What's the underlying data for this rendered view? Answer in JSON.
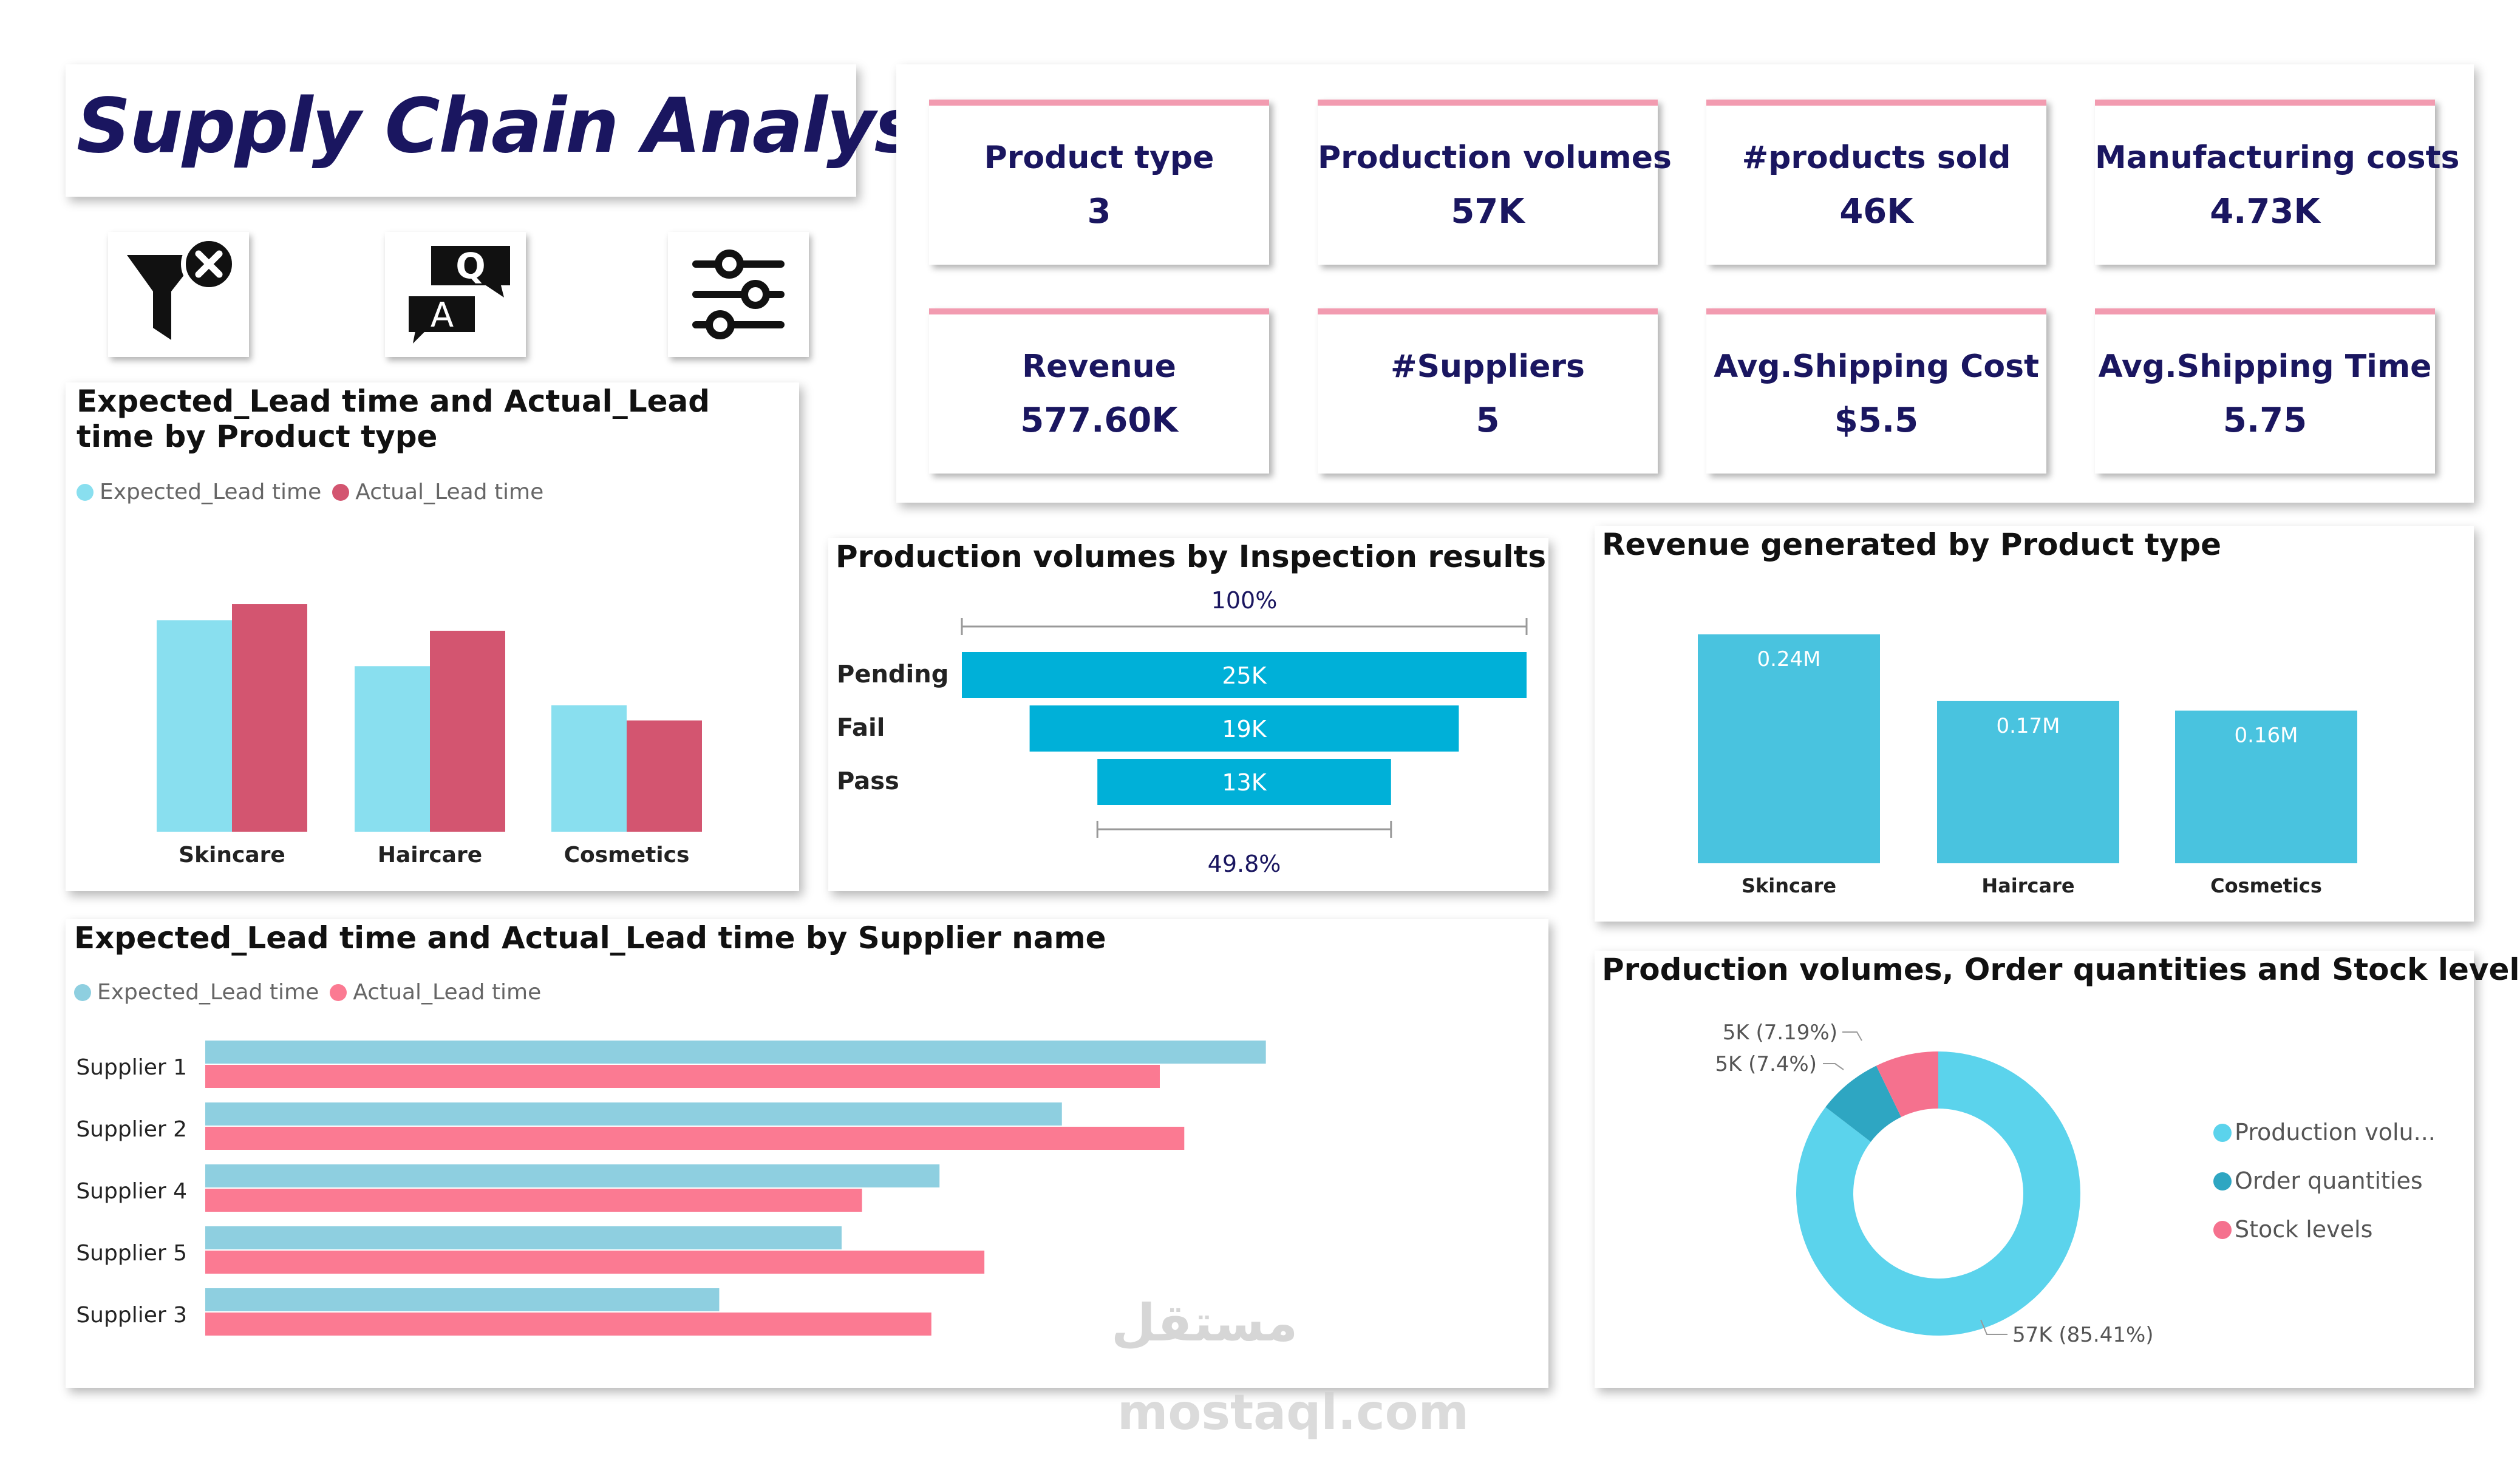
{
  "header": {
    "title": "Supply Chain Analysis"
  },
  "toolbar": {
    "icons": [
      "clear-filter-icon",
      "qa-icon",
      "slicer-settings-icon"
    ]
  },
  "kpis": [
    {
      "label": "Product type",
      "value": "3"
    },
    {
      "label": "Production volumes",
      "value": "57K"
    },
    {
      "label": "#products sold",
      "value": "46K"
    },
    {
      "label": "Manufacturing costs",
      "value": "4.73K"
    },
    {
      "label": "Revenue",
      "value": "577.60K"
    },
    {
      "label": "#Suppliers",
      "value": "5"
    },
    {
      "label": "Avg.Shipping Cost",
      "value": "$5.5"
    },
    {
      "label": "Avg.Shipping Time",
      "value": "5.75"
    }
  ],
  "colors": {
    "title": "#1a1660",
    "kpi_accent": "#f29bb0",
    "expected": "#89dfef",
    "actual": "#d35570",
    "expected_h": "#8ecfe0",
    "actual_h": "#fb7a92",
    "funnel": "#00b0d8",
    "revenue": "#49c3df",
    "donut_prod": "#5bd3ec",
    "donut_order": "#2ea6c2",
    "donut_stock": "#f5718e"
  },
  "chart_data": [
    {
      "id": "lead_by_product",
      "type": "bar",
      "title": "Expected_Lead time and Actual_Lead time by Product type",
      "categories": [
        "Skincare",
        "Haircare",
        "Cosmetics"
      ],
      "series": [
        {
          "name": "Expected_Lead time",
          "values": [
            460,
            360,
            275
          ]
        },
        {
          "name": "Actual_Lead time",
          "values": [
            495,
            437,
            242
          ]
        }
      ],
      "ylim": [
        0,
        560
      ],
      "legend": "top-left"
    },
    {
      "id": "inspection_funnel",
      "type": "bar",
      "subtype": "funnel",
      "title": "Production volumes by Inspection results",
      "categories": [
        "Pending",
        "Fail",
        "Pass"
      ],
      "values": [
        25,
        19,
        13
      ],
      "value_labels": [
        "25K",
        "19K",
        "13K"
      ],
      "top_label": "100%",
      "bottom_label": "49.8%"
    },
    {
      "id": "revenue_by_product",
      "type": "bar",
      "title": "Revenue generated by Product type",
      "categories": [
        "Skincare",
        "Haircare",
        "Cosmetics"
      ],
      "values": [
        0.24,
        0.17,
        0.16
      ],
      "value_labels": [
        "0.24M",
        "0.17M",
        "0.16M"
      ],
      "ylim": [
        0,
        0.28
      ]
    },
    {
      "id": "lead_by_supplier",
      "type": "bar",
      "orientation": "horizontal",
      "title": "Expected_Lead time and Actual_Lead time by Supplier name",
      "categories": [
        "Supplier 1",
        "Supplier 2",
        "Supplier 4",
        "Supplier 5",
        "Supplier 3"
      ],
      "series": [
        {
          "name": "Expected_Lead time",
          "values": [
            260,
            210,
            180,
            156,
            126
          ]
        },
        {
          "name": "Actual_Lead time",
          "values": [
            234,
            240,
            161,
            191,
            178
          ]
        }
      ],
      "xlim": [
        0,
        280
      ],
      "legend": "top-left"
    },
    {
      "id": "volumes_donut",
      "type": "pie",
      "subtype": "donut",
      "title": "Production volumes, Order quantities and Stock levels",
      "labels": [
        "Production volu...",
        "Order quantities",
        "Stock levels"
      ],
      "values": [
        85.41,
        7.4,
        7.19
      ],
      "value_labels": [
        "57K (85.41%)",
        "5K (7.4%)",
        "5K (7.19%)"
      ],
      "legend": "right"
    }
  ],
  "watermark": {
    "arabic": "مستقل",
    "latin": "mostaql.com"
  }
}
